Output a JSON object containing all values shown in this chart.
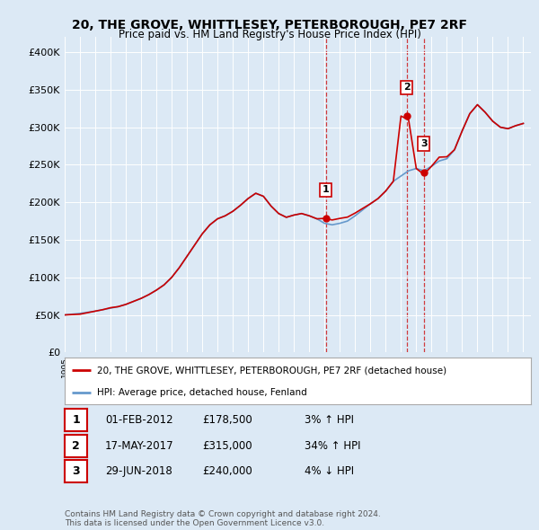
{
  "title": "20, THE GROVE, WHITTLESEY, PETERBOROUGH, PE7 2RF",
  "subtitle": "Price paid vs. HM Land Registry's House Price Index (HPI)",
  "background_color": "#dce9f5",
  "plot_bg_color": "#dce9f5",
  "ylim": [
    0,
    420000
  ],
  "yticks": [
    0,
    50000,
    100000,
    150000,
    200000,
    250000,
    300000,
    350000,
    400000
  ],
  "ytick_labels": [
    "£0",
    "£50K",
    "£100K",
    "£150K",
    "£200K",
    "£250K",
    "£300K",
    "£350K",
    "£400K"
  ],
  "sale_year_nums": [
    2012.08,
    2017.38,
    2018.5
  ],
  "sale_prices": [
    178500,
    315000,
    240000
  ],
  "sale_labels": [
    "1",
    "2",
    "3"
  ],
  "legend_label_red": "20, THE GROVE, WHITTLESEY, PETERBOROUGH, PE7 2RF (detached house)",
  "legend_label_blue": "HPI: Average price, detached house, Fenland",
  "table_rows": [
    [
      "1",
      "01-FEB-2012",
      "£178,500",
      "3% ↑ HPI"
    ],
    [
      "2",
      "17-MAY-2017",
      "£315,000",
      "34% ↑ HPI"
    ],
    [
      "3",
      "29-JUN-2018",
      "£240,000",
      "4% ↓ HPI"
    ]
  ],
  "footer": "Contains HM Land Registry data © Crown copyright and database right 2024.\nThis data is licensed under the Open Government Licence v3.0.",
  "red_color": "#cc0000",
  "blue_color": "#6699cc",
  "years_hpi": [
    1995.0,
    1995.5,
    1996.0,
    1996.5,
    1997.0,
    1997.5,
    1998.0,
    1998.5,
    1999.0,
    1999.5,
    2000.0,
    2000.5,
    2001.0,
    2001.5,
    2002.0,
    2002.5,
    2003.0,
    2003.5,
    2004.0,
    2004.5,
    2005.0,
    2005.5,
    2006.0,
    2006.5,
    2007.0,
    2007.5,
    2008.0,
    2008.5,
    2009.0,
    2009.5,
    2010.0,
    2010.5,
    2011.0,
    2011.5,
    2012.0,
    2012.5,
    2013.0,
    2013.5,
    2014.0,
    2014.5,
    2015.0,
    2015.5,
    2016.0,
    2016.5,
    2017.0,
    2017.5,
    2018.0,
    2018.5,
    2019.0,
    2019.5,
    2020.0,
    2020.5,
    2021.0,
    2021.5,
    2022.0,
    2022.5,
    2023.0,
    2023.5,
    2024.0,
    2024.5,
    2025.0
  ],
  "hpi_values": [
    50000,
    51000,
    52000,
    53500,
    55000,
    57000,
    59000,
    61000,
    64000,
    68000,
    72000,
    77000,
    83000,
    90000,
    100000,
    113000,
    128000,
    143000,
    158000,
    170000,
    178000,
    182000,
    188000,
    196000,
    205000,
    212000,
    208000,
    195000,
    185000,
    180000,
    183000,
    185000,
    182000,
    178000,
    172000,
    170000,
    172000,
    175000,
    182000,
    190000,
    198000,
    205000,
    215000,
    228000,
    235000,
    242000,
    245000,
    242000,
    248000,
    255000,
    258000,
    270000,
    295000,
    318000,
    330000,
    320000,
    308000,
    300000,
    298000,
    302000,
    305000
  ],
  "red_multipliers": [
    1.0,
    0.99,
    0.98,
    0.99,
    1.0,
    1.0,
    1.01,
    1.0,
    1.0,
    1.0,
    1.0,
    1.0,
    1.0,
    1.0,
    1.0,
    1.0,
    1.0,
    1.0,
    1.0,
    1.0,
    1.0,
    1.0,
    1.0,
    1.0,
    1.0,
    1.0,
    1.0,
    1.0,
    1.0,
    1.0,
    1.0,
    1.0,
    1.0,
    1.0,
    1.038,
    1.038,
    1.038,
    1.03,
    1.02,
    1.01,
    1.0,
    1.0,
    1.0,
    1.0,
    1.34,
    1.28,
    1.0,
    0.98,
    1.0,
    1.02,
    1.01,
    1.0,
    1.0,
    1.0,
    1.0,
    1.0,
    1.0,
    1.0,
    1.0,
    1.0,
    1.0
  ]
}
